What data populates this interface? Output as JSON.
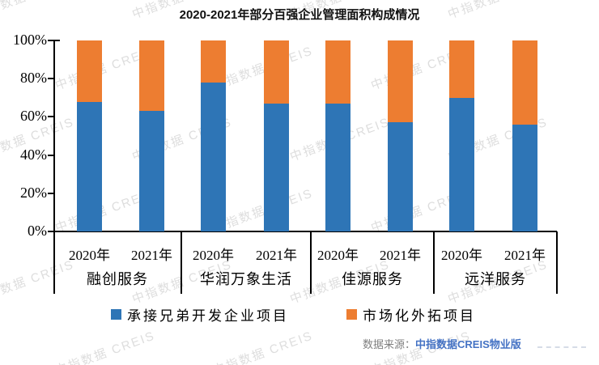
{
  "watermark": {
    "text": "中指数据 CREIS",
    "color": "rgba(125,125,125,0.26)"
  },
  "chart_data": {
    "type": "bar",
    "variant": "100-percent-stacked-column",
    "title": "2020-2021年部分百强企业管理面积构成情况",
    "groups": [
      {
        "name": "融创服务",
        "years": [
          "2020年",
          "2021年"
        ]
      },
      {
        "name": "华润万象生活",
        "years": [
          "2020年",
          "2021年"
        ]
      },
      {
        "name": "佳源服务",
        "years": [
          "2020年",
          "2021年"
        ]
      },
      {
        "name": "远洋服务",
        "years": [
          "2020年",
          "2021年"
        ]
      }
    ],
    "categories": [
      "融创服务 2020年",
      "融创服务 2021年",
      "华润万象生活 2020年",
      "华润万象生活 2021年",
      "佳源服务 2020年",
      "佳源服务 2021年",
      "远洋服务 2020年",
      "远洋服务 2021年"
    ],
    "series": [
      {
        "name": "承接兄弟开发企业项目",
        "color": "#2E75B6",
        "values": [
          68,
          63,
          78,
          67,
          67,
          57,
          70,
          56
        ]
      },
      {
        "name": "市场化外拓项目",
        "color": "#ED7D31",
        "values": [
          32,
          37,
          22,
          33,
          33,
          43,
          30,
          44
        ]
      }
    ],
    "y_ticks": [
      "0%",
      "20%",
      "40%",
      "60%",
      "80%",
      "100%"
    ],
    "ylim": [
      0,
      100
    ],
    "unit": "percent",
    "grid": "off",
    "legend_position": "bottom"
  },
  "source": {
    "prefix": "数据来源：",
    "name": "中指数据CREIS物业版",
    "prefix_color": "#7f7f7f",
    "name_color": "#4472C4"
  }
}
